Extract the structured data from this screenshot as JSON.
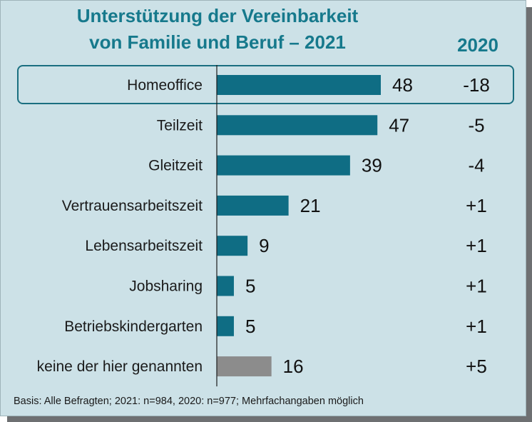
{
  "chart_data": {
    "type": "bar",
    "orientation": "horizontal",
    "title": "Unterstützung der Vereinbarkeit von Familie und Beruf – 2021",
    "title_lines": [
      "Unterstützung der Vereinbarkeit",
      "von Familie und Beruf – 2021"
    ],
    "comparison_header": "2020",
    "categories": [
      "Homeoffice",
      "Teilzeit",
      "Gleitzeit",
      "Vertrauensarbeitszeit",
      "Lebensarbeitszeit",
      "Jobsharing",
      "Betriebskindergarten",
      "keine der hier genannten"
    ],
    "values": [
      48,
      47,
      39,
      21,
      9,
      5,
      5,
      16
    ],
    "value_labels": [
      "48",
      "47",
      "39",
      "21",
      "9",
      "5",
      "5",
      "16"
    ],
    "change_vs_2020": [
      "-18",
      "-5",
      "-4",
      "+1",
      "+1",
      "+1",
      "+1",
      "+5"
    ],
    "highlighted_category": "Homeoffice",
    "xlim": [
      0,
      50
    ],
    "bar_colors": [
      "#0f6d84",
      "#0f6d84",
      "#0f6d84",
      "#0f6d84",
      "#0f6d84",
      "#0f6d84",
      "#0f6d84",
      "#8c8c8c"
    ],
    "footnote": "Basis: Alle Befragten; 2021: n=984, 2020: n=977; Mehrfachangaben möglich"
  },
  "colors": {
    "panel_background": "#cce1e7",
    "title": "#16798c",
    "bar": "#0f6d84",
    "bar_other": "#8c8c8c",
    "highlight_border": "#1a6f80"
  }
}
